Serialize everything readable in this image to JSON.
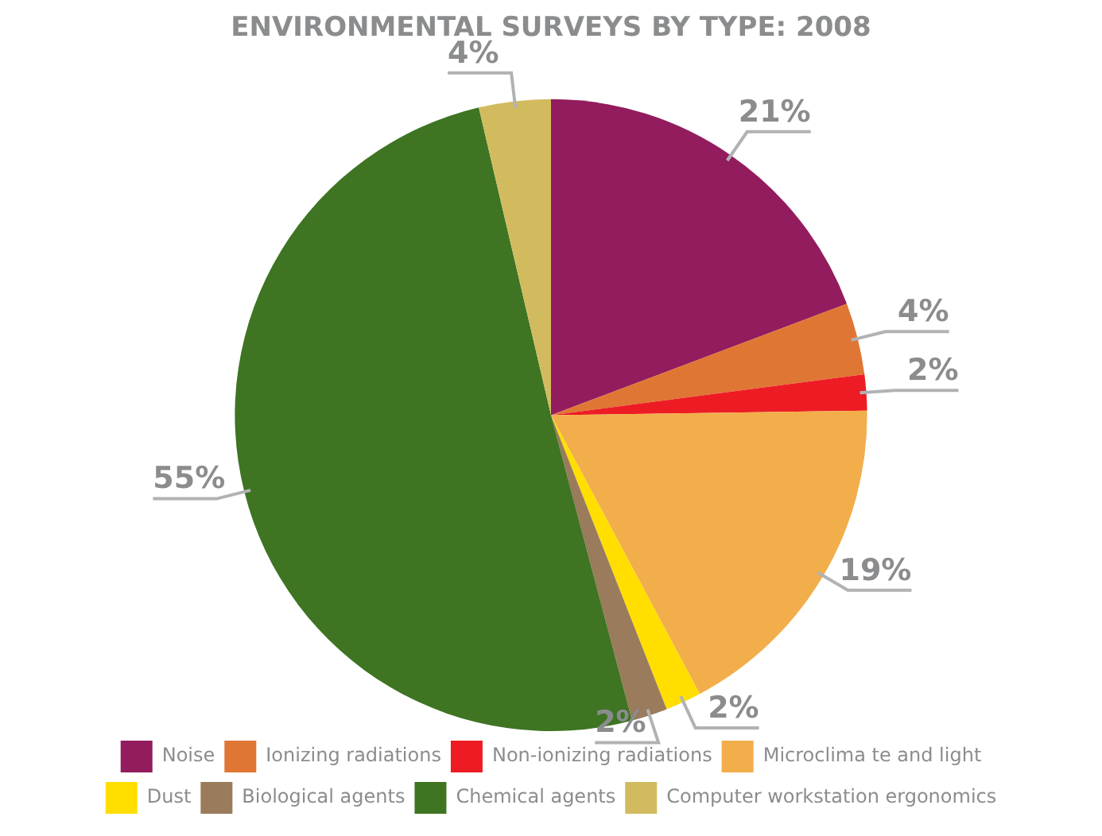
{
  "chart_data": {
    "type": "pie",
    "title": "ENVIRONMENTAL SURVEYS BY TYPE: 2008",
    "categories": [
      "Noise",
      "Ionizing radiations",
      "Non-ionizing radiations",
      "Microclima te and light",
      "Dust",
      "Biological agents",
      "Chemical agents",
      "Computer workstation ergonomics"
    ],
    "values": [
      21,
      4,
      2,
      19,
      2,
      2,
      55,
      4
    ],
    "colors": [
      "#921c5e",
      "#e07634",
      "#ed1c24",
      "#f2ae4b",
      "#ffde00",
      "#9a7b5c",
      "#3e7422",
      "#d2bb5f"
    ],
    "value_labels": [
      "21%",
      "4%",
      "2%",
      "19%",
      "2%",
      "2%",
      "55%",
      "4%"
    ],
    "legend": "bottom"
  }
}
